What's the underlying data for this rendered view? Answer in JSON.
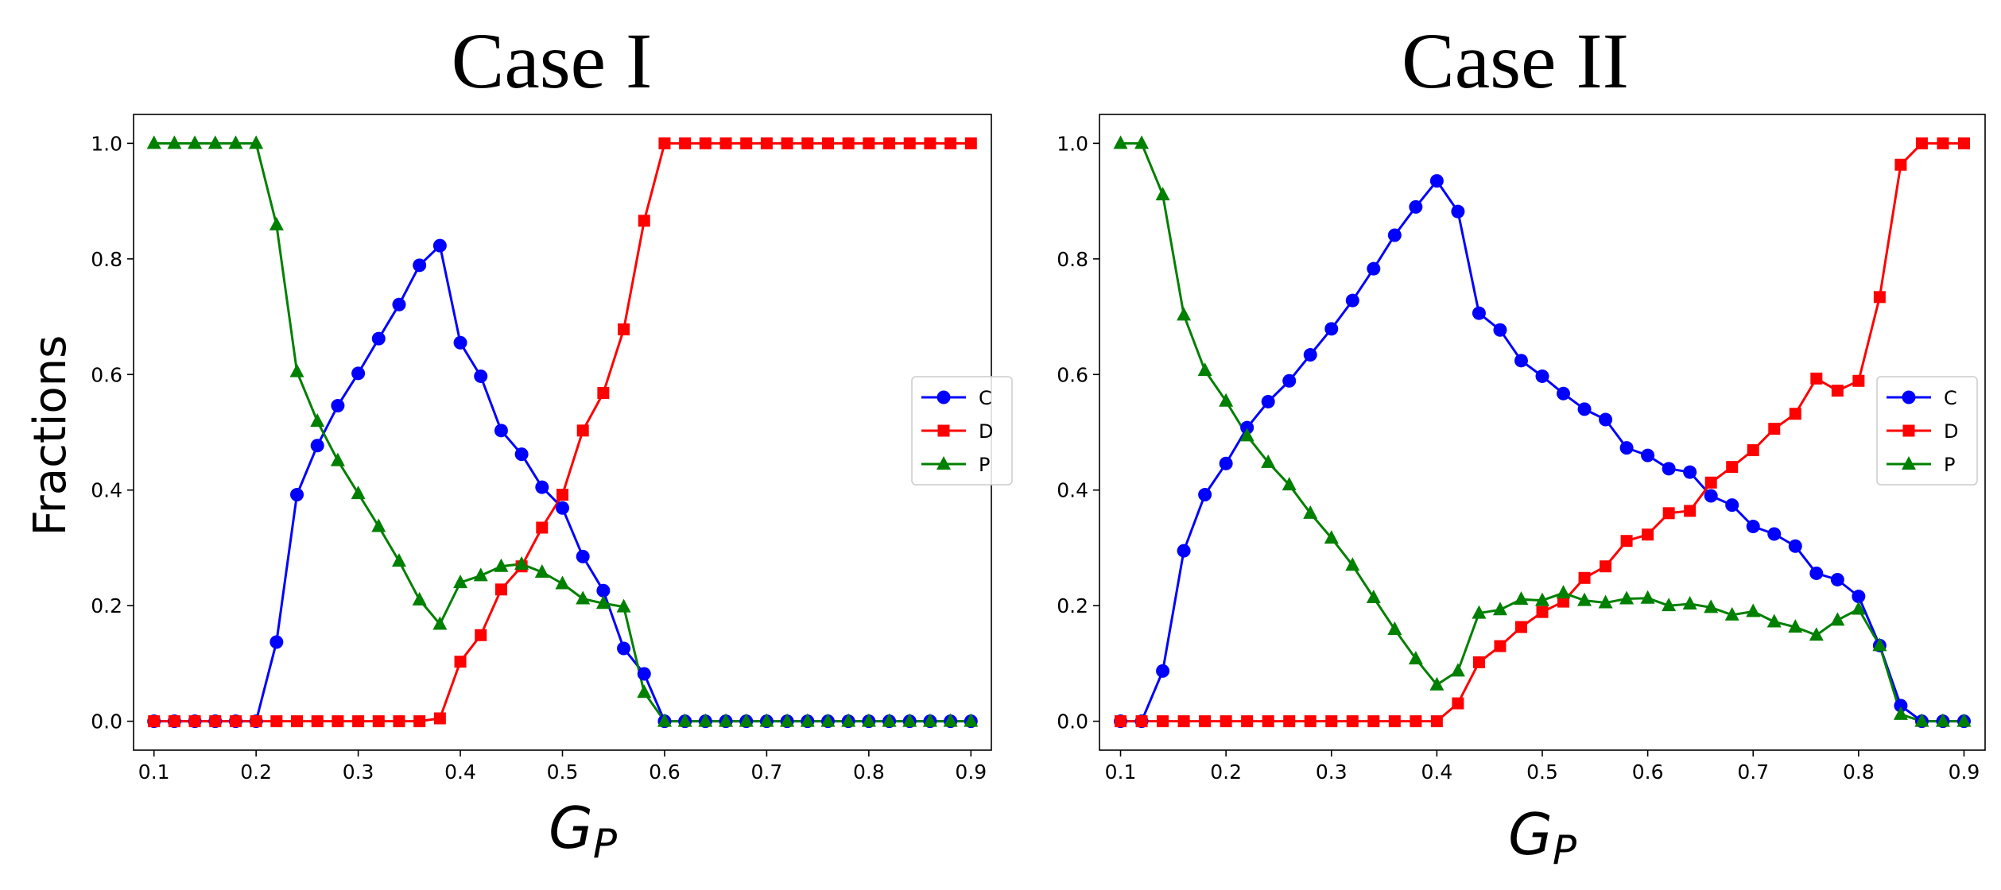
{
  "chart_data": [
    {
      "type": "line",
      "title": "Case I",
      "xlabel": "G",
      "xlabel_sub": "P",
      "ylabel": "Fractions",
      "xlim": [
        0.08,
        0.92
      ],
      "ylim": [
        -0.05,
        1.05
      ],
      "xticks": [
        "0.1",
        "0.2",
        "0.3",
        "0.4",
        "0.5",
        "0.6",
        "0.7",
        "0.8",
        "0.9"
      ],
      "yticks": [
        "0.0",
        "0.2",
        "0.4",
        "0.6",
        "0.8",
        "1.0"
      ],
      "legend_position": "center-right",
      "x": [
        0.1,
        0.12,
        0.14,
        0.16,
        0.18,
        0.2,
        0.22,
        0.24,
        0.26,
        0.28,
        0.3,
        0.32,
        0.34,
        0.36,
        0.38,
        0.4,
        0.42,
        0.44,
        0.46,
        0.48,
        0.5,
        0.52,
        0.54,
        0.56,
        0.58,
        0.6,
        0.62,
        0.64,
        0.66,
        0.68,
        0.7,
        0.72,
        0.74,
        0.76,
        0.78,
        0.8,
        0.82,
        0.84,
        0.86,
        0.88,
        0.9
      ],
      "series": [
        {
          "name": "C",
          "color": "#0000ff",
          "marker": "circle",
          "values": [
            0,
            0,
            0,
            0,
            0,
            0,
            0.137,
            0.392,
            0.477,
            0.546,
            0.602,
            0.662,
            0.721,
            0.789,
            0.823,
            0.655,
            0.597,
            0.503,
            0.462,
            0.405,
            0.369,
            0.285,
            0.226,
            0.126,
            0.082,
            0,
            0,
            0,
            0,
            0,
            0,
            0,
            0,
            0,
            0,
            0,
            0,
            0,
            0,
            0,
            0
          ]
        },
        {
          "name": "D",
          "color": "#ff0000",
          "marker": "square",
          "values": [
            0,
            0,
            0,
            0,
            0,
            0,
            0,
            0,
            0,
            0,
            0,
            0,
            0,
            0,
            0.005,
            0.103,
            0.149,
            0.228,
            0.268,
            0.335,
            0.392,
            0.503,
            0.568,
            0.678,
            0.866,
            1,
            1,
            1,
            1,
            1,
            1,
            1,
            1,
            1,
            1,
            1,
            1,
            1,
            1,
            1,
            1
          ]
        },
        {
          "name": "P",
          "color": "#008000",
          "marker": "triangle",
          "values": [
            1,
            1,
            1,
            1,
            1,
            1,
            0.859,
            0.605,
            0.519,
            0.451,
            0.394,
            0.337,
            0.277,
            0.21,
            0.168,
            0.24,
            0.252,
            0.268,
            0.272,
            0.258,
            0.238,
            0.212,
            0.204,
            0.198,
            0.05,
            0,
            0,
            0,
            0,
            0,
            0,
            0,
            0,
            0,
            0,
            0,
            0,
            0,
            0,
            0,
            0
          ]
        }
      ]
    },
    {
      "type": "line",
      "title": "Case II",
      "xlabel": "G",
      "xlabel_sub": "P",
      "ylabel": "",
      "xlim": [
        0.08,
        0.92
      ],
      "ylim": [
        -0.05,
        1.05
      ],
      "xticks": [
        "0.1",
        "0.2",
        "0.3",
        "0.4",
        "0.5",
        "0.6",
        "0.7",
        "0.8",
        "0.9"
      ],
      "yticks": [
        "0.0",
        "0.2",
        "0.4",
        "0.6",
        "0.8",
        "1.0"
      ],
      "legend_position": "center-right",
      "x": [
        0.1,
        0.12,
        0.14,
        0.16,
        0.18,
        0.2,
        0.22,
        0.24,
        0.26,
        0.28,
        0.3,
        0.32,
        0.34,
        0.36,
        0.38,
        0.4,
        0.42,
        0.44,
        0.46,
        0.48,
        0.5,
        0.52,
        0.54,
        0.56,
        0.58,
        0.6,
        0.62,
        0.64,
        0.66,
        0.68,
        0.7,
        0.72,
        0.74,
        0.76,
        0.78,
        0.8,
        0.82,
        0.84,
        0.86,
        0.88,
        0.9
      ],
      "series": [
        {
          "name": "C",
          "color": "#0000ff",
          "marker": "circle",
          "values": [
            0,
            0,
            0.087,
            0.295,
            0.392,
            0.446,
            0.508,
            0.553,
            0.589,
            0.634,
            0.679,
            0.728,
            0.783,
            0.841,
            0.89,
            0.935,
            0.882,
            0.706,
            0.677,
            0.624,
            0.597,
            0.567,
            0.54,
            0.522,
            0.473,
            0.46,
            0.437,
            0.431,
            0.39,
            0.374,
            0.337,
            0.324,
            0.303,
            0.256,
            0.245,
            0.216,
            0.131,
            0.027,
            0,
            0,
            0
          ]
        },
        {
          "name": "D",
          "color": "#ff0000",
          "marker": "square",
          "values": [
            0,
            0,
            0,
            0,
            0,
            0,
            0,
            0,
            0,
            0,
            0,
            0,
            0,
            0,
            0,
            0,
            0.031,
            0.102,
            0.13,
            0.163,
            0.189,
            0.207,
            0.248,
            0.268,
            0.312,
            0.323,
            0.36,
            0.364,
            0.413,
            0.44,
            0.469,
            0.506,
            0.532,
            0.593,
            0.572,
            0.589,
            0.734,
            0.963,
            1,
            1,
            1
          ]
        },
        {
          "name": "P",
          "color": "#008000",
          "marker": "triangle",
          "values": [
            1,
            1,
            0.911,
            0.703,
            0.607,
            0.554,
            0.494,
            0.448,
            0.409,
            0.36,
            0.317,
            0.27,
            0.214,
            0.159,
            0.108,
            0.063,
            0.087,
            0.187,
            0.193,
            0.211,
            0.209,
            0.222,
            0.209,
            0.205,
            0.212,
            0.213,
            0.2,
            0.203,
            0.197,
            0.184,
            0.19,
            0.172,
            0.163,
            0.149,
            0.175,
            0.194,
            0.131,
            0.012,
            0,
            0,
            0
          ]
        }
      ]
    }
  ]
}
